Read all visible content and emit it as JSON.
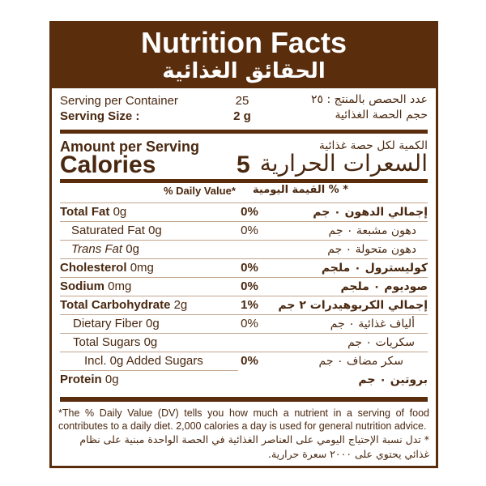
{
  "header": {
    "title_en": "Nutrition Facts",
    "title_ar": "الحقائق الغذائية"
  },
  "serving": {
    "per_container_label": "Serving per Container",
    "per_container_value": "25",
    "per_container_ar": "عدد الحصص بالمنتج : ٢٥",
    "size_label": "Serving Size :",
    "size_value": "2 g",
    "size_ar": "حجم الحصة الغذائية"
  },
  "calories": {
    "amount_label": "Amount per Serving",
    "amount_ar": "الكمية لكل حصة غذائية",
    "label": "Calories",
    "value": "5",
    "label_ar": "السعرات الحرارية"
  },
  "dv_header": {
    "en": "% Daily Value*",
    "ar": "* % القيمة اليومية"
  },
  "rows": [
    {
      "name": "Total Fat",
      "amount": "0g",
      "pct": "0%",
      "ar": "إجمالي الدهون  ٠ جم",
      "bold": true
    },
    {
      "name": "Saturated Fat",
      "amount": "0g",
      "pct": "0%",
      "ar": "دهون مشبعة  ٠ جم",
      "bold": false
    },
    {
      "name": "Trans Fat",
      "amount": "0g",
      "pct": "",
      "ar": "دهون متحولة  ٠ جم",
      "bold": false
    },
    {
      "name": "Cholesterol",
      "amount": "0mg",
      "pct": "0%",
      "ar": "كوليسترول  ٠ ملجم",
      "bold": true
    },
    {
      "name": "Sodium",
      "amount": "0mg",
      "pct": "0%",
      "ar": "صوديوم  ٠ ملجم",
      "bold": true
    },
    {
      "name": "Total Carbohydrate",
      "amount": "2g",
      "pct": "1%",
      "ar": "إجمالي الكربوهيدرات  ٢ جم",
      "bold": true
    },
    {
      "name": "Dietary Fiber",
      "amount": "0g",
      "pct": "0%",
      "ar": "ألياف غذائية ٠ جم",
      "bold": false
    },
    {
      "name": "Total Sugars",
      "amount": "0g",
      "pct": "",
      "ar": "سكريات  ٠ جم",
      "bold": false
    },
    {
      "name": "Incl. 0g Added Sugars",
      "amount": "",
      "pct": "0%",
      "ar": "سكر مضاف ٠ جم",
      "bold": false
    },
    {
      "name": "Protein",
      "amount": "0g",
      "pct": "",
      "ar": "بروتين  ٠ جم",
      "bold": true
    }
  ],
  "footnote": {
    "en": "*The % Daily Value (DV) tells you how much a nutrient in a serving of food contributes to a daily diet. 2,000 calories a day is used for general nutrition advice.",
    "ar": "* تدل نسبة الإحتياج اليومي على العناصر الغذائية في الحصة الواحدة مبنية على نظام غذائي يحتوي على ٢٠٠٠ سعرة حرارية."
  },
  "colors": {
    "brand": "#5a2d0c",
    "text": "#4a2810",
    "rule": "#c2a48c"
  }
}
